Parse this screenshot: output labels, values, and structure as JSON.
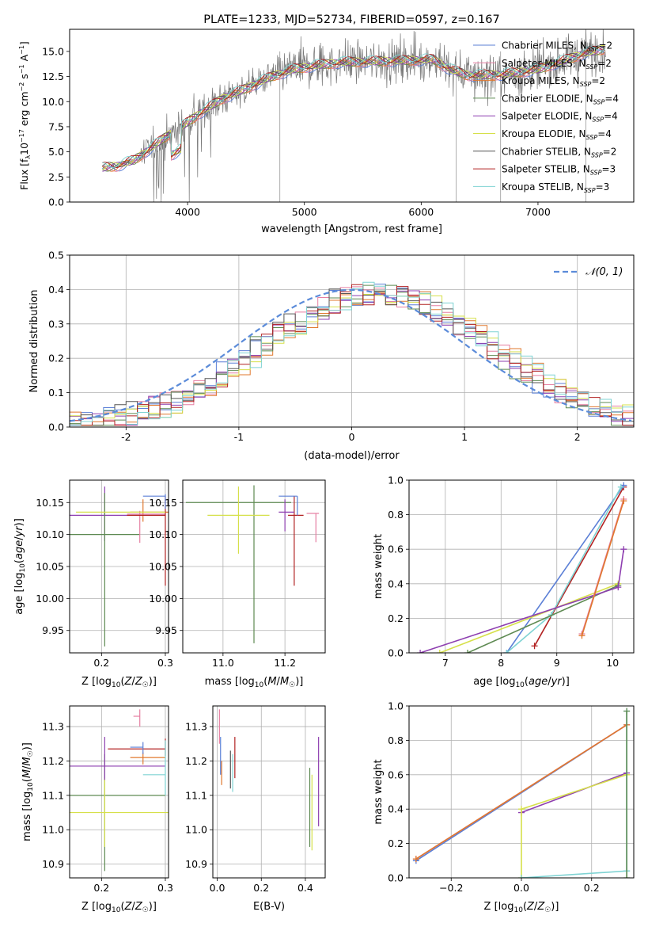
{
  "chart_data": [
    {
      "id": "spectrum",
      "type": "line",
      "title": "PLATE=1233, MJD=52734, FIBERID=0597, z=0.167",
      "xlabel": "wavelength [Angstrom, rest frame]",
      "ylabel": "Flux [f_λ 10^-17 erg cm^-2 s^-1 A^-1]",
      "xlim": [
        2990,
        7820
      ],
      "ylim": [
        0,
        17.2
      ],
      "xticks": [
        4000,
        5000,
        6000,
        7000
      ],
      "yticks": [
        0.0,
        2.5,
        5.0,
        7.5,
        10.0,
        12.5,
        15.0
      ],
      "grid": false,
      "legend_position": "top-right",
      "legend": [
        {
          "label": "Chabrier MILES, N_SSP=2",
          "color": "#5b7fd6"
        },
        {
          "label": "Salpeter MILES, N_SSP=2",
          "color": "#e67fa2"
        },
        {
          "label": "Kroupa MILES, N_SSP=2",
          "color": "#e0782e"
        },
        {
          "label": "Chabrier ELODIE, N_SSP=4",
          "color": "#5e8a52"
        },
        {
          "label": "Salpeter ELODIE, N_SSP=4",
          "color": "#8e3fb0"
        },
        {
          "label": "Kroupa ELODIE, N_SSP=4",
          "color": "#d6e04a"
        },
        {
          "label": "Chabrier STELIB, N_SSP=2",
          "color": "#555555"
        },
        {
          "label": "Salpeter STELIB, N_SSP=3",
          "color": "#b22222"
        },
        {
          "label": "Kroupa STELIB, N_SSP=3",
          "color": "#7fd3d3"
        }
      ],
      "continuum_points": {
        "x": [
          3260,
          3400,
          3550,
          3700,
          3850,
          3950,
          4100,
          4300,
          4500,
          4700,
          4900,
          5100,
          5300,
          5600,
          5900,
          6100,
          6250,
          6400,
          6700,
          7000,
          7200,
          7400,
          7600
        ],
        "y": [
          3.4,
          3.6,
          4.2,
          5.5,
          6.8,
          7.5,
          8.8,
          10.3,
          11.3,
          12.4,
          13.2,
          13.6,
          13.9,
          14.0,
          14.1,
          14.2,
          13.2,
          12.6,
          12.7,
          13.2,
          14.0,
          14.8,
          15.3
        ]
      }
    },
    {
      "id": "residuals",
      "type": "histogram",
      "xlabel": "(data-model)/error",
      "ylabel": "Normed distribution",
      "xlim": [
        -2.5,
        2.5
      ],
      "ylim": [
        0,
        0.5
      ],
      "xticks": [
        -2,
        -1,
        0,
        1,
        2
      ],
      "yticks": [
        0.0,
        0.1,
        0.2,
        0.3,
        0.4,
        0.5
      ],
      "grid": true,
      "legend_position": "top-right",
      "legend": [
        {
          "label": "𝒩(0, 1)",
          "color": "#5b8bd9",
          "style": "dashed"
        }
      ],
      "bin_width": 0.1
    },
    {
      "id": "age_vs_Z",
      "type": "scatter",
      "xlabel": "Z [log10(Z/Z☉)]",
      "ylabel": "age  [log10(age/yr)]",
      "xlim": [
        0.15,
        0.305
      ],
      "ylim": [
        9.915,
        10.185
      ],
      "xticks": [
        0.2,
        0.3
      ],
      "yticks": [
        9.95,
        10.0,
        10.05,
        10.1,
        10.15
      ],
      "grid": true,
      "errorbars": [
        {
          "x": 0.205,
          "y": 10.13,
          "xerr": [
            0.055,
            0.095
          ],
          "yerr": [
            0.04,
            0.045
          ],
          "color": "#8e3fb0"
        },
        {
          "x": 0.205,
          "y": 10.1,
          "xerr": [
            0.055,
            0.055
          ],
          "yerr": [
            0.175,
            0.065
          ],
          "color": "#5e8a52"
        },
        {
          "x": 0.265,
          "y": 10.135,
          "xerr": [
            0.02,
            0.04
          ],
          "yerr": [
            0.015,
            0.02
          ],
          "color": "#e0782e"
        },
        {
          "x": 0.26,
          "y": 10.132,
          "xerr": [
            0.02,
            0.04
          ],
          "yerr": [
            0.045,
            0.005
          ],
          "color": "#e67fa2"
        },
        {
          "x": 0.3,
          "y": 10.13,
          "xerr": [
            0.06,
            0
          ],
          "yerr": [
            0.11,
            0.03
          ],
          "color": "#b22222"
        },
        {
          "x": 0.3,
          "y": 10.16,
          "xerr": [
            0.035,
            0
          ],
          "yerr": [
            0.02,
            0.003
          ],
          "color": "#5b7fd6"
        },
        {
          "x": 0.21,
          "y": 10.135,
          "xerr": [
            0.05,
            0.09
          ],
          "yerr": [
            0,
            0
          ],
          "color": "#d6e04a"
        }
      ]
    },
    {
      "id": "age_vs_mass",
      "type": "scatter",
      "xlabel": "mass [log10(M/M☉)]",
      "ylabel": "",
      "xlim": [
        10.87,
        11.33
      ],
      "ylim": [
        9.915,
        10.185
      ],
      "xticks": [
        11.0,
        11.2
      ],
      "yticks": [
        9.95,
        10.0,
        10.05,
        10.1,
        10.15
      ],
      "grid": true,
      "errorbars": [
        {
          "x": 11.1,
          "y": 10.15,
          "xerr": [
            0.22,
            0.12
          ],
          "yerr": [
            0.22,
            0.027
          ],
          "color": "#5e8a52"
        },
        {
          "x": 11.05,
          "y": 10.13,
          "xerr": [
            0.1,
            0.1
          ],
          "yerr": [
            0.06,
            0.045
          ],
          "color": "#d6e04a"
        },
        {
          "x": 11.23,
          "y": 10.13,
          "xerr": [
            0.02,
            0.03
          ],
          "yerr": [
            0.11,
            0.03
          ],
          "color": "#b22222"
        },
        {
          "x": 11.2,
          "y": 10.135,
          "xerr": [
            0.02,
            0.03
          ],
          "yerr": [
            0.03,
            0.02
          ],
          "color": "#8e3fb0"
        },
        {
          "x": 11.3,
          "y": 10.133,
          "xerr": [
            0.03,
            0.01
          ],
          "yerr": [
            0.045,
            0
          ],
          "color": "#e67fa2"
        },
        {
          "x": 11.24,
          "y": 10.16,
          "xerr": [
            0.06,
            0
          ],
          "yerr": [
            0.03,
            0
          ],
          "color": "#5b7fd6"
        }
      ]
    },
    {
      "id": "weight_vs_age",
      "type": "line",
      "xlabel": "age  [log10(age/yr)]",
      "ylabel": "mass weight",
      "xlim": [
        6.35,
        10.38
      ],
      "ylim": [
        0,
        1.0
      ],
      "xticks": [
        7,
        8,
        9,
        10
      ],
      "yticks": [
        0.0,
        0.2,
        0.4,
        0.6,
        0.8,
        1.0
      ],
      "grid": true,
      "series": [
        {
          "color": "#b22222",
          "x": [
            8.6,
            10.2
          ],
          "y": [
            0.04,
            0.96
          ]
        },
        {
          "color": "#5b7fd6",
          "x": [
            8.1,
            10.2
          ],
          "y": [
            0.0,
            0.97
          ]
        },
        {
          "color": "#7fd3d3",
          "x": [
            8.1,
            8.9,
            10.15
          ],
          "y": [
            0.0,
            0.22,
            0.96
          ]
        },
        {
          "color": "#d6e04a",
          "x": [
            6.9,
            10.1
          ],
          "y": [
            0.0,
            0.4
          ]
        },
        {
          "color": "#5e8a52",
          "x": [
            7.4,
            10.1
          ],
          "y": [
            0.0,
            0.39
          ]
        },
        {
          "color": "#8e3fb0",
          "x": [
            6.55,
            10.1,
            10.2
          ],
          "y": [
            0.0,
            0.38,
            0.6
          ]
        },
        {
          "color": "#e67fa2",
          "x": [
            9.45,
            10.2
          ],
          "y": [
            0.11,
            0.89
          ]
        },
        {
          "color": "#e0782e",
          "x": [
            9.45,
            10.2
          ],
          "y": [
            0.1,
            0.88
          ]
        }
      ]
    },
    {
      "id": "mass_vs_Z",
      "type": "scatter",
      "xlabel": "Z [log10(Z/Z☉)]",
      "ylabel": "mass [log10(M/M☉)]",
      "xlim": [
        0.15,
        0.305
      ],
      "ylim": [
        10.86,
        11.36
      ],
      "xticks": [
        0.2,
        0.3
      ],
      "yticks": [
        10.9,
        11.0,
        11.1,
        11.2,
        11.3
      ],
      "grid": true,
      "errorbars": [
        {
          "x": 0.205,
          "y": 11.1,
          "xerr": [
            0.055,
            0.095
          ],
          "yerr": [
            0.22,
            0.12
          ],
          "color": "#5e8a52"
        },
        {
          "x": 0.205,
          "y": 11.05,
          "xerr": [
            0.055,
            0.1
          ],
          "yerr": [
            0.1,
            0.1
          ],
          "color": "#d6e04a"
        },
        {
          "x": 0.205,
          "y": 11.185,
          "xerr": [
            0.055,
            0.095
          ],
          "yerr": [
            0.04,
            0.085
          ],
          "color": "#8e3fb0"
        },
        {
          "x": 0.3,
          "y": 11.235,
          "xerr": [
            0.09,
            0
          ],
          "yerr": [
            0.02,
            0.03
          ],
          "color": "#b22222"
        },
        {
          "x": 0.26,
          "y": 11.33,
          "xerr": [
            0.01,
            0
          ],
          "yerr": [
            0.03,
            0.02
          ],
          "color": "#e67fa2"
        },
        {
          "x": 0.265,
          "y": 11.21,
          "xerr": [
            0.02,
            0.035
          ],
          "yerr": [
            0.02,
            0.015
          ],
          "color": "#e0782e"
        },
        {
          "x": 0.3,
          "y": 11.16,
          "xerr": [
            0.035,
            0
          ],
          "yerr": [
            0.06,
            0.1
          ],
          "color": "#7fd3d3"
        },
        {
          "x": 0.265,
          "y": 11.24,
          "xerr": [
            0.02,
            0
          ],
          "yerr": [
            0.02,
            0.015
          ],
          "color": "#5b7fd6"
        }
      ]
    },
    {
      "id": "mass_vs_ebv",
      "type": "scatter",
      "xlabel": "E(B-V)",
      "ylabel": "",
      "xlim": [
        -0.02,
        0.49
      ],
      "ylim": [
        10.86,
        11.36
      ],
      "xticks": [
        0.0,
        0.2,
        0.4
      ],
      "yticks": [
        10.9,
        11.0,
        11.1,
        11.2,
        11.3
      ],
      "grid": true,
      "errorbars": [
        {
          "x": 0.01,
          "y": 11.3,
          "yerr": [
            0.05,
            0.05
          ],
          "color": "#e67fa2"
        },
        {
          "x": 0.015,
          "y": 11.21,
          "yerr": [
            0.05,
            0.06
          ],
          "color": "#5b7fd6"
        },
        {
          "x": 0.02,
          "y": 11.18,
          "yerr": [
            0.05,
            0.02
          ],
          "color": "#e0782e"
        },
        {
          "x": 0.06,
          "y": 11.18,
          "yerr": [
            0.06,
            0.05
          ],
          "color": "#555555"
        },
        {
          "x": 0.07,
          "y": 11.17,
          "yerr": [
            0.06,
            0.05
          ],
          "color": "#7fd3d3"
        },
        {
          "x": 0.08,
          "y": 11.21,
          "yerr": [
            0.06,
            0.06
          ],
          "color": "#b22222"
        },
        {
          "x": 0.42,
          "y": 11.08,
          "yerr": [
            0.13,
            0.1
          ],
          "color": "#5e8a52"
        },
        {
          "x": 0.43,
          "y": 11.04,
          "yerr": [
            0.1,
            0.12
          ],
          "color": "#d6e04a"
        },
        {
          "x": 0.46,
          "y": 11.14,
          "yerr": [
            0.13,
            0.13
          ],
          "color": "#8e3fb0"
        }
      ]
    },
    {
      "id": "weight_vs_Z",
      "type": "line",
      "xlabel": "Z [log10(Z/Z☉)]",
      "ylabel": "mass weight",
      "xlim": [
        -0.32,
        0.32
      ],
      "ylim": [
        0,
        1.0
      ],
      "xticks": [
        -0.2,
        0.0,
        0.2
      ],
      "yticks": [
        0.0,
        0.2,
        0.4,
        0.6,
        0.8,
        1.0
      ],
      "grid": true,
      "series": [
        {
          "color": "#5b7fd6",
          "x": [
            -0.3,
            0.3
          ],
          "y": [
            0.1,
            0.89
          ]
        },
        {
          "color": "#e67fa2",
          "x": [
            -0.3,
            0.3
          ],
          "y": [
            0.11,
            0.89
          ]
        },
        {
          "color": "#e0782e",
          "x": [
            -0.3,
            0.3
          ],
          "y": [
            0.11,
            0.89
          ]
        },
        {
          "color": "#8e3fb0",
          "x": [
            0.0,
            0.3
          ],
          "y": [
            0.38,
            0.61
          ]
        },
        {
          "color": "#d6e04a",
          "x": [
            0.0,
            0.0,
            0.3
          ],
          "y": [
            0.0,
            0.4,
            0.6
          ]
        },
        {
          "color": "#7fd3d3",
          "x": [
            0.0,
            0.3,
            0.3,
            0.3
          ],
          "y": [
            0.0,
            0.04,
            0.97,
            0.04
          ]
        },
        {
          "color": "#5e8a52",
          "x": [
            0.3,
            0.3
          ],
          "y": [
            0.0,
            0.97
          ]
        }
      ]
    }
  ]
}
